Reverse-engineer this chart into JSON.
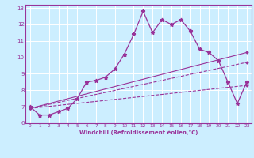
{
  "title": "",
  "xlabel": "Windchill (Refroidissement éolien,°C)",
  "bg_color": "#cceeff",
  "line_color": "#993399",
  "xlim": [
    -0.5,
    23.5
  ],
  "ylim": [
    6.0,
    13.2
  ],
  "xticks": [
    0,
    1,
    2,
    3,
    4,
    5,
    6,
    7,
    8,
    9,
    10,
    11,
    12,
    13,
    14,
    15,
    16,
    17,
    18,
    19,
    20,
    21,
    22,
    23
  ],
  "yticks": [
    6,
    7,
    8,
    9,
    10,
    11,
    12,
    13
  ],
  "series1_x": [
    0,
    1,
    2,
    3,
    4,
    5,
    6,
    7,
    8,
    9,
    10,
    11,
    12,
    13,
    14,
    15,
    16,
    17,
    18,
    19,
    20,
    21,
    22,
    23
  ],
  "series1_y": [
    7.0,
    6.5,
    6.5,
    6.7,
    6.9,
    7.5,
    8.5,
    8.6,
    8.8,
    9.3,
    10.2,
    11.4,
    12.8,
    11.5,
    12.3,
    12.0,
    12.3,
    11.6,
    10.5,
    10.3,
    9.8,
    8.5,
    7.2,
    8.5
  ],
  "series2_x": [
    0,
    23
  ],
  "series2_y": [
    6.9,
    10.3
  ],
  "series3_x": [
    0,
    23
  ],
  "series3_y": [
    6.9,
    9.7
  ],
  "series4_x": [
    0,
    23
  ],
  "series4_y": [
    6.9,
    8.3
  ]
}
